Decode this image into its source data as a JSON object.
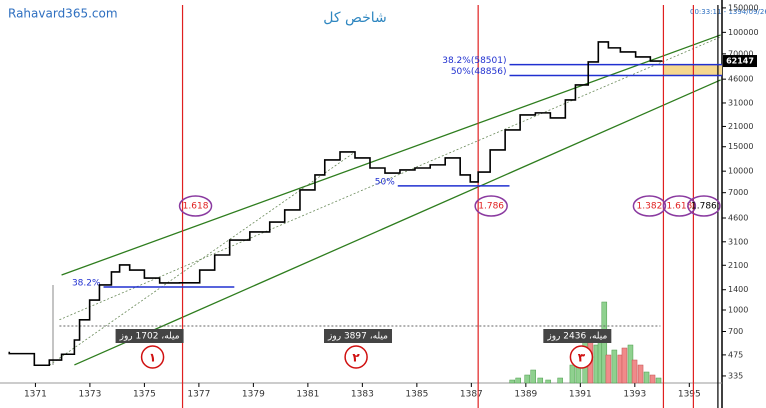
{
  "chart_data": {
    "type": "line",
    "title": "شاخص کل",
    "watermark": "Rahavard365.com",
    "timestamp": "ایجاد شده در: 1394/09/26 - 00:33:11",
    "log_scale": true,
    "color": "#000000",
    "xlim": [
      1369.7,
      1396.2
    ],
    "ylim": [
      298,
      171000
    ],
    "xticks": [
      1371,
      1373,
      1375,
      1377,
      1379,
      1381,
      1383,
      1385,
      1387,
      1389,
      1391,
      1393,
      1395
    ],
    "yticks": [
      150000,
      100000,
      70000,
      46000,
      31000,
      21000,
      15000,
      10000,
      7000,
      4600,
      3100,
      2100,
      1400,
      1000,
      700,
      475,
      335
    ],
    "x": [
      1370.04,
      1370.96,
      1371.51,
      1371.96,
      1372.43,
      1372.62,
      1372.99,
      1373.35,
      1373.79,
      1374.09,
      1374.46,
      1375.0,
      1375.56,
      1376.29,
      1377.03,
      1377.58,
      1378.13,
      1378.87,
      1379.6,
      1380.15,
      1380.71,
      1381.26,
      1381.62,
      1382.18,
      1382.73,
      1383.28,
      1383.83,
      1384.38,
      1384.93,
      1385.49,
      1386.04,
      1386.59,
      1386.96,
      1387.25,
      1387.69,
      1388.24,
      1388.79,
      1389.35,
      1389.9,
      1390.45,
      1390.82,
      1391.29,
      1391.66,
      1392.03,
      1392.47,
      1393.03,
      1393.57,
      1393.94
    ],
    "values": [
      500,
      485,
      400,
      436,
      480,
      608,
      850,
      1180,
      1515,
      1880,
      2110,
      1940,
      1700,
      1567,
      1570,
      1940,
      2490,
      3190,
      3650,
      4300,
      5260,
      7330,
      9400,
      12050,
      13750,
      12450,
      10540,
      9700,
      10200,
      10540,
      11100,
      12450,
      9400,
      8360,
      9860,
      14220,
      19820,
      25400,
      26300,
      24200,
      32600,
      41800,
      61200,
      85300,
      77300,
      72300,
      66500,
      62147
    ],
    "volume": {
      "x": [
        1388.5,
        1388.72,
        1389.05,
        1389.27,
        1389.53,
        1389.82,
        1390.26,
        1390.71,
        1390.93,
        1391.18,
        1391.37,
        1391.59,
        1391.74,
        1391.88,
        1392.03,
        1392.25,
        1392.47,
        1392.62,
        1392.84,
        1392.99,
        1393.21,
        1393.43,
        1393.65,
        1393.87
      ],
      "values": [
        3,
        5,
        8,
        13,
        5,
        3,
        5,
        18,
        28,
        43,
        48,
        38,
        53,
        81,
        28,
        33,
        28,
        35,
        38,
        23,
        18,
        11,
        8,
        5
      ],
      "colors": [
        "#8fd18f",
        "#8fd18f",
        "#8fd18f",
        "#8fd18f",
        "#8fd18f",
        "#8fd18f",
        "#8fd18f",
        "#8fd18f",
        "#8fd18f",
        "#8fd18f",
        "#f08a8a",
        "#8fd18f",
        "#8fd18f",
        "#8fd18f",
        "#f08a8a",
        "#8fd18f",
        "#f08a8a",
        "#f08a8a",
        "#8fd18f",
        "#f08a8a",
        "#f08a8a",
        "#8fd18f",
        "#f08a8a",
        "#8fd18f"
      ]
    },
    "trend_lines": [
      {
        "x": [
          1371.96,
          1396.15
        ],
        "values": [
          1786,
          95800
        ],
        "color": "#2e7d1e",
        "dashed": false
      },
      {
        "x": [
          1372.43,
          1396.15
        ],
        "values": [
          402,
          45400
        ],
        "color": "#2e7d1e",
        "dashed": false
      },
      {
        "x": [
          1371.88,
          1396.15
        ],
        "values": [
          850,
          92700
        ],
        "color": "#6a8a5a",
        "dashed": true
      },
      {
        "x": [
          1371.51,
          1382.73
        ],
        "values": [
          400,
          13750
        ],
        "color": "#6a8a5a",
        "dashed": true
      }
    ],
    "fib_levels": [
      {
        "value": 1466,
        "label": "38.2%",
        "x": [
          1373.5,
          1378.3
        ]
      },
      {
        "value": 7830,
        "label": "50%",
        "x": [
          1384.3,
          1388.4
        ]
      },
      {
        "value": 58501,
        "label": "38.2%(58501)",
        "x": [
          1388.4,
          1396.2
        ]
      },
      {
        "value": 48856,
        "label": "50%(48856)",
        "x": [
          1388.4,
          1396.2
        ]
      }
    ],
    "band": {
      "values": [
        48856,
        58501
      ],
      "x": [
        1394.05,
        1396.2
      ],
      "color": "#f5d78e"
    },
    "time_lines": [
      {
        "x": 1376.4,
        "label": "1.618",
        "color": "#e02020"
      },
      {
        "x": 1387.25,
        "label": "1.786",
        "color": "#e02020"
      },
      {
        "x": 1394.05,
        "label": "1.382",
        "color": "#e02020"
      },
      {
        "x": 1395.15,
        "label": "1.618",
        "color": "#e02020"
      },
      {
        "x": 1396.05,
        "label": "1.786",
        "color": "#000000"
      }
    ],
    "measure_line": {
      "value": 767,
      "x": [
        1371.88,
        1393.94
      ]
    },
    "measure_labels": [
      {
        "x": 1375.19,
        "label": "میله، 1702 روز"
      },
      {
        "x": 1382.84,
        "label": "میله، 3897 روز"
      },
      {
        "x": 1390.89,
        "label": "میله، 2436 روز"
      }
    ],
    "wave_marks": [
      {
        "x": 1375.3,
        "label": "۱"
      },
      {
        "x": 1382.77,
        "label": "۲"
      },
      {
        "x": 1391.04,
        "label": "۳"
      }
    ]
  }
}
